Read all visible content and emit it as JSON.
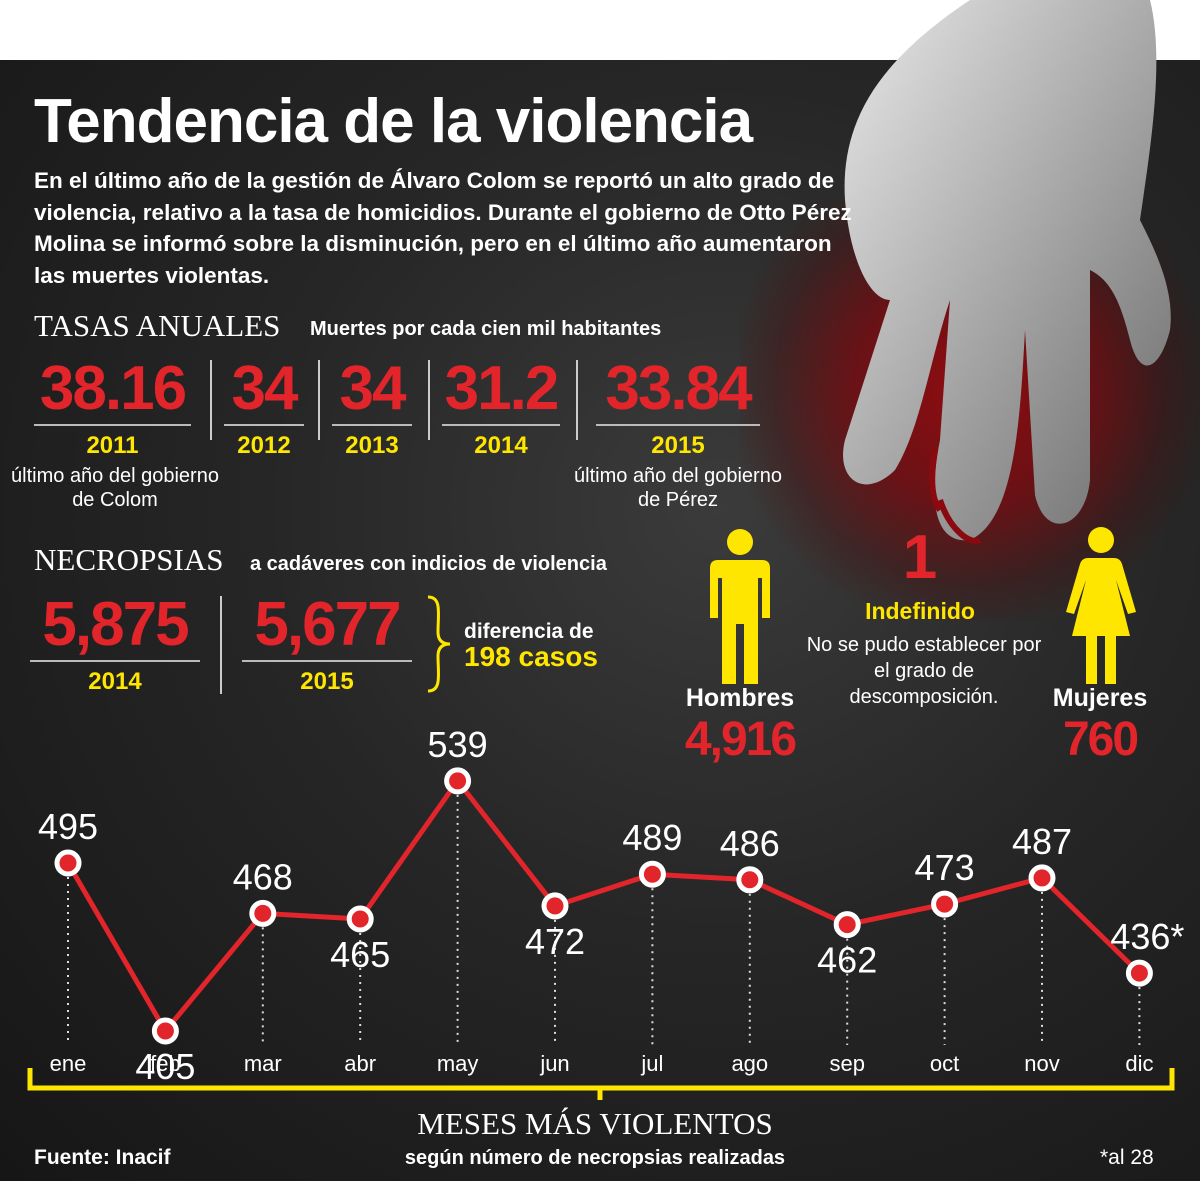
{
  "header": {
    "title": "Tendencia de la violencia",
    "intro": "En el último año de la gestión de Álvaro Colom se reportó un alto grado de violencia, relativo a la tasa de homicidios. Durante el gobierno de Otto Pérez Molina se informó sobre la disminución, pero en el último año aumentaron las muertes violentas."
  },
  "tasas": {
    "heading": "TASAS ANUALES",
    "subheading": "Muertes por cada cien mil habitantes",
    "items": [
      {
        "value": "38.16",
        "year": "2011",
        "note": "último año del gobierno de Colom"
      },
      {
        "value": "34",
        "year": "2012",
        "note": ""
      },
      {
        "value": "34",
        "year": "2013",
        "note": ""
      },
      {
        "value": "31.2",
        "year": "2014",
        "note": ""
      },
      {
        "value": "33.84",
        "year": "2015",
        "note": "último año del gobierno de Pérez"
      }
    ]
  },
  "necropsias": {
    "heading": "NECROPSIAS",
    "subheading": "a cadáveres con indicios de violencia",
    "items": [
      {
        "value": "5,875",
        "year": "2014"
      },
      {
        "value": "5,677",
        "year": "2015"
      }
    ],
    "diff_label": "diferencia de",
    "diff_value": "198 casos"
  },
  "genders": {
    "men_label": "Hombres",
    "men_value": "4,916",
    "undef_value": "1",
    "undef_label": "Indefinido",
    "undef_note": "No se pudo establecer por el grado de descomposición.",
    "women_label": "Mujeres",
    "women_value": "760"
  },
  "chart_data": {
    "type": "line",
    "categories": [
      "ene",
      "feb",
      "mar",
      "abr",
      "may",
      "jun",
      "jul",
      "ago",
      "sep",
      "oct",
      "nov",
      "dic"
    ],
    "values": [
      495,
      405,
      468,
      465,
      539,
      472,
      489,
      486,
      462,
      473,
      487,
      436
    ],
    "value_labels": [
      "495",
      "405",
      "468",
      "465",
      "539",
      "472",
      "489",
      "486",
      "462",
      "473",
      "487",
      "436*"
    ],
    "title": "MESES MÁS VIOLENTOS",
    "subtitle": "según número de necropsias realizadas",
    "colors": {
      "line": "#e1252b",
      "marker_fill": "#e1252b",
      "marker_stroke": "#ffffff",
      "bracket": "#ffe600"
    }
  },
  "footer": {
    "source": "Fuente: Inacif",
    "footnote": "*al 28"
  }
}
